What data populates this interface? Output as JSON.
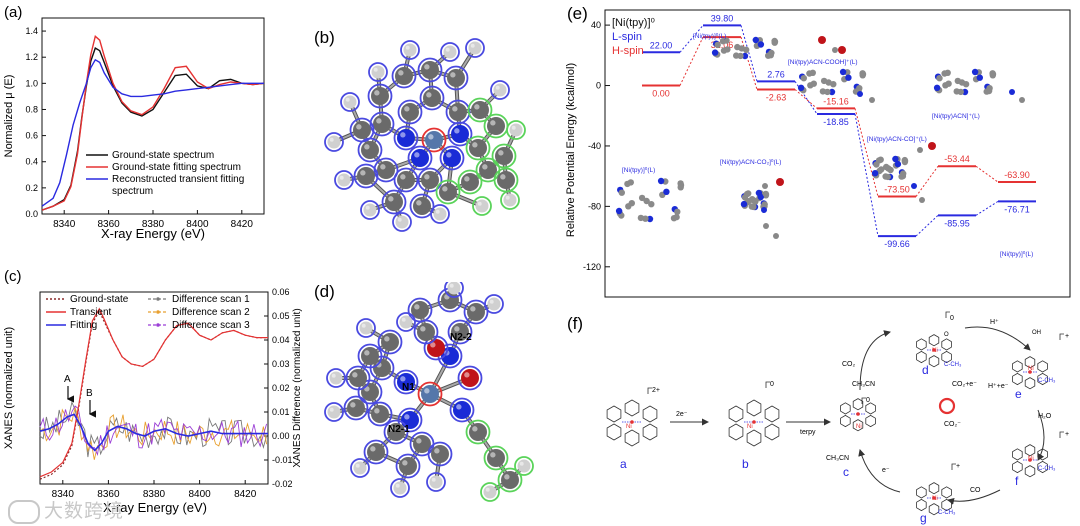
{
  "figure": {
    "panel_labels": {
      "a": "(a)",
      "b": "(b)",
      "c": "(c)",
      "d": "(d)",
      "e": "(e)",
      "f": "(f)"
    },
    "watermark": "大数跨境",
    "colors": {
      "black": "#111111",
      "red": "#e53232",
      "blue": "#2a2ae0",
      "darkred": "#8b2b2b",
      "orange": "#e8a030",
      "purple": "#9b3fd6",
      "gray": "#7a7a7a",
      "atom_blue": "#1a2bd6",
      "atom_red": "#c0141a"
    }
  },
  "chart_data": [
    {
      "panel": "a",
      "type": "line",
      "xlabel": "X-ray Energy (eV)",
      "ylabel": "Normalized μ (E)",
      "xlim": [
        8330,
        8430
      ],
      "ylim": [
        0.0,
        1.5
      ],
      "xticks": [
        8340,
        8360,
        8380,
        8400,
        8420
      ],
      "yticks": [
        0.0,
        0.2,
        0.4,
        0.6,
        0.8,
        1.0,
        1.2,
        1.4
      ],
      "legend_position": "bottom-right",
      "series": [
        {
          "name": "Ground-state spectrum",
          "color": "#111111",
          "x": [
            8330,
            8335,
            8340,
            8343,
            8346,
            8348,
            8350,
            8352,
            8354,
            8356,
            8358,
            8362,
            8366,
            8370,
            8375,
            8380,
            8385,
            8390,
            8395,
            8400,
            8405,
            8410,
            8415,
            8420,
            8425,
            8430
          ],
          "y": [
            0.03,
            0.06,
            0.11,
            0.22,
            0.48,
            0.75,
            0.98,
            1.17,
            1.27,
            1.25,
            1.16,
            0.98,
            0.85,
            0.78,
            0.75,
            0.8,
            0.93,
            1.06,
            1.07,
            0.98,
            0.96,
            1.02,
            1.03,
            1.0,
            0.99,
            1.0
          ]
        },
        {
          "name": "Ground-state fitting spectrum",
          "color": "#e53232",
          "x": [
            8330,
            8335,
            8340,
            8343,
            8346,
            8348,
            8350,
            8352,
            8354,
            8356,
            8358,
            8362,
            8366,
            8370,
            8375,
            8380,
            8385,
            8390,
            8395,
            8400,
            8405,
            8410,
            8415,
            8420,
            8425,
            8430
          ],
          "y": [
            0.03,
            0.06,
            0.1,
            0.21,
            0.46,
            0.74,
            1.0,
            1.22,
            1.36,
            1.33,
            1.21,
            1.0,
            0.86,
            0.79,
            0.76,
            0.82,
            0.96,
            1.12,
            1.13,
            1.01,
            0.96,
            0.99,
            1.01,
            1.0,
            0.99,
            1.0
          ]
        },
        {
          "name": "Reconstructed transient fitting spectrum",
          "color": "#2a2ae0",
          "x": [
            8330,
            8335,
            8338,
            8341,
            8344,
            8347,
            8350,
            8352,
            8354,
            8356,
            8358,
            8362,
            8366,
            8370,
            8375,
            8380,
            8385,
            8390,
            8395,
            8400,
            8405,
            8410,
            8415,
            8420,
            8425,
            8430
          ],
          "y": [
            0.06,
            0.12,
            0.24,
            0.45,
            0.68,
            0.85,
            1.0,
            1.12,
            1.18,
            1.16,
            1.08,
            0.97,
            0.92,
            0.9,
            0.9,
            0.91,
            0.92,
            0.94,
            0.95,
            0.96,
            0.97,
            0.98,
            0.99,
            1.0,
            1.0,
            1.0
          ]
        }
      ]
    },
    {
      "panel": "c",
      "type": "line",
      "xlabel": "X-ray Energy (eV)",
      "ylabel": "XANES (normalized unit)",
      "y2label": "XANES Difference (normalized unit)",
      "xlim": [
        8330,
        8430
      ],
      "xticks": [
        8340,
        8360,
        8380,
        8400,
        8420
      ],
      "y2lim": [
        -0.02,
        0.06
      ],
      "y2ticks": [
        -0.02,
        -0.01,
        0.0,
        0.01,
        0.02,
        0.03,
        0.04,
        0.05,
        0.06
      ],
      "annotations": [
        "A",
        "B"
      ],
      "legend_left": [
        "Ground-state",
        "Transient",
        "Fitting"
      ],
      "legend_right": [
        "Difference scan 1",
        "Difference scan 2",
        "Difference scan 3"
      ],
      "ground_state": {
        "color": "#8b2b2b",
        "x": [
          8330,
          8335,
          8340,
          8344,
          8347,
          8350,
          8353,
          8356,
          8358,
          8362,
          8366,
          8370,
          8375,
          8380,
          8385,
          8390,
          8395,
          8400,
          8405,
          8410,
          8415,
          8420,
          8425,
          8430
        ],
        "y": [
          -0.018,
          -0.016,
          -0.012,
          -0.004,
          0.012,
          0.03,
          0.047,
          0.052,
          0.048,
          0.04,
          0.033,
          0.03,
          0.029,
          0.032,
          0.04,
          0.046,
          0.047,
          0.042,
          0.04,
          0.043,
          0.044,
          0.042,
          0.041,
          0.041
        ]
      },
      "transient": {
        "color": "#e53232",
        "x": [
          8330,
          8335,
          8340,
          8344,
          8347,
          8350,
          8353,
          8356,
          8358,
          8362,
          8366,
          8370,
          8375,
          8380,
          8385,
          8390,
          8395,
          8400,
          8405,
          8410,
          8415,
          8420,
          8425,
          8430
        ],
        "y": [
          -0.017,
          -0.015,
          -0.011,
          -0.003,
          0.013,
          0.031,
          0.048,
          0.053,
          0.049,
          0.04,
          0.033,
          0.03,
          0.029,
          0.032,
          0.04,
          0.046,
          0.047,
          0.042,
          0.04,
          0.043,
          0.044,
          0.042,
          0.041,
          0.041
        ]
      },
      "fitting": {
        "color": "#2a2ae0",
        "x": [
          8330,
          8334,
          8338,
          8342,
          8345,
          8348,
          8351,
          8354,
          8357,
          8360,
          8364,
          8368,
          8372,
          8376,
          8380,
          8385,
          8390,
          8395,
          8400,
          8405,
          8410,
          8415,
          8420,
          8425,
          8430
        ],
        "y": [
          0.002,
          0.003,
          0.005,
          0.008,
          0.009,
          0.004,
          -0.003,
          -0.006,
          -0.003,
          0.002,
          0.004,
          0.003,
          0.001,
          0.0,
          0.002,
          0.003,
          0.001,
          0.0,
          0.001,
          0.002,
          0.001,
          0.001,
          0.001,
          0.001,
          0.001
        ]
      },
      "scans": [
        {
          "name": "Difference scan 1",
          "color": "#7a7a7a",
          "seed": 3
        },
        {
          "name": "Difference scan 2",
          "color": "#e8a030",
          "seed": 7
        },
        {
          "name": "Difference scan 3",
          "color": "#9b3fd6",
          "seed": 11
        }
      ]
    },
    {
      "panel": "e",
      "type": "energy_diagram",
      "ylabel": "Relative Potential Energy (kcal/mol)",
      "ylim": [
        -140,
        50
      ],
      "yticks": [
        40,
        0,
        -40,
        -80,
        -120
      ],
      "legend": [
        {
          "label": "[Ni(tpy)]⁰",
          "color": "#111111"
        },
        {
          "label": "L-spin",
          "color": "#2a2ae0"
        },
        {
          "label": "H-spin",
          "color": "#e53232"
        }
      ],
      "levels": [
        {
          "col": 0,
          "spin": "L",
          "value": 22.0,
          "label": "22.00"
        },
        {
          "col": 0,
          "spin": "H",
          "value": 0.0,
          "label": "0.00"
        },
        {
          "col": 1,
          "spin": "L",
          "value": 39.8,
          "label": "39.80"
        },
        {
          "col": 1,
          "spin": "H",
          "value": 32.06,
          "label": "32.06"
        },
        {
          "col": 2,
          "spin": "L",
          "value": 2.76,
          "label": "2.76"
        },
        {
          "col": 2,
          "spin": "H",
          "value": -2.63,
          "label": "-2.63"
        },
        {
          "col": 3,
          "spin": "H",
          "value": -15.16,
          "label": "-15.16"
        },
        {
          "col": 3,
          "spin": "L",
          "value": -18.85,
          "label": "-18.85"
        },
        {
          "col": 4,
          "spin": "H",
          "value": -73.5,
          "label": "-73.50"
        },
        {
          "col": 4,
          "spin": "L",
          "value": -99.66,
          "label": "-99.66"
        },
        {
          "col": 5,
          "spin": "H",
          "value": -53.44,
          "label": "-53.44"
        },
        {
          "col": 5,
          "spin": "L",
          "value": -85.95,
          "label": "-85.95"
        },
        {
          "col": 6,
          "spin": "H",
          "value": -63.9,
          "label": "-63.90"
        },
        {
          "col": 6,
          "spin": "L",
          "value": -76.71,
          "label": "-76.71"
        }
      ],
      "species_labels": [
        "[Ni(tpy)]⁰(L)",
        "[Ni(tpy)]⁰(L)",
        "[Ni(tpy)ACN-CO₂]⁰(L)",
        "[Ni(tpy)ACN-COOH]⁺(L)",
        "[Ni(tpy)ACN-CO]⁺(L)",
        "[Ni(tpy)ACN]⁺(L)",
        "[Ni(tpy)]⁰(L)"
      ]
    }
  ],
  "panel_b": {
    "atoms_note": "molecular model"
  },
  "panel_d": {
    "labels": [
      "N2-2",
      "N1",
      "N2-1"
    ]
  },
  "panel_f": {
    "species": [
      "a",
      "b",
      "c",
      "d",
      "e",
      "f",
      "g"
    ],
    "charges": {
      "a": "2+",
      "b": "0",
      "c": "0",
      "d": "0",
      "e": "+",
      "f": "+",
      "g": "+"
    },
    "arrow_labels": {
      "a_b": "2e⁻",
      "b_c": "terpy",
      "c_d_1": "CO₂",
      "c_d_2": "CH₃CN",
      "d_e": "H⁺",
      "e_f_1": "H⁺+e⁻",
      "e_f_2": "H₂O",
      "f_g": "CO",
      "g_c_1": "e⁻",
      "g_c_2": "CH₃CN"
    },
    "center": {
      "top": "CO₂+e⁻",
      "bottom": "CO₂⁻"
    },
    "atom_labels": {
      "N": "N",
      "Ni": "Ni",
      "C": "C",
      "O": "O",
      "OH": "OH",
      "ch3": "C-CH₃"
    }
  }
}
